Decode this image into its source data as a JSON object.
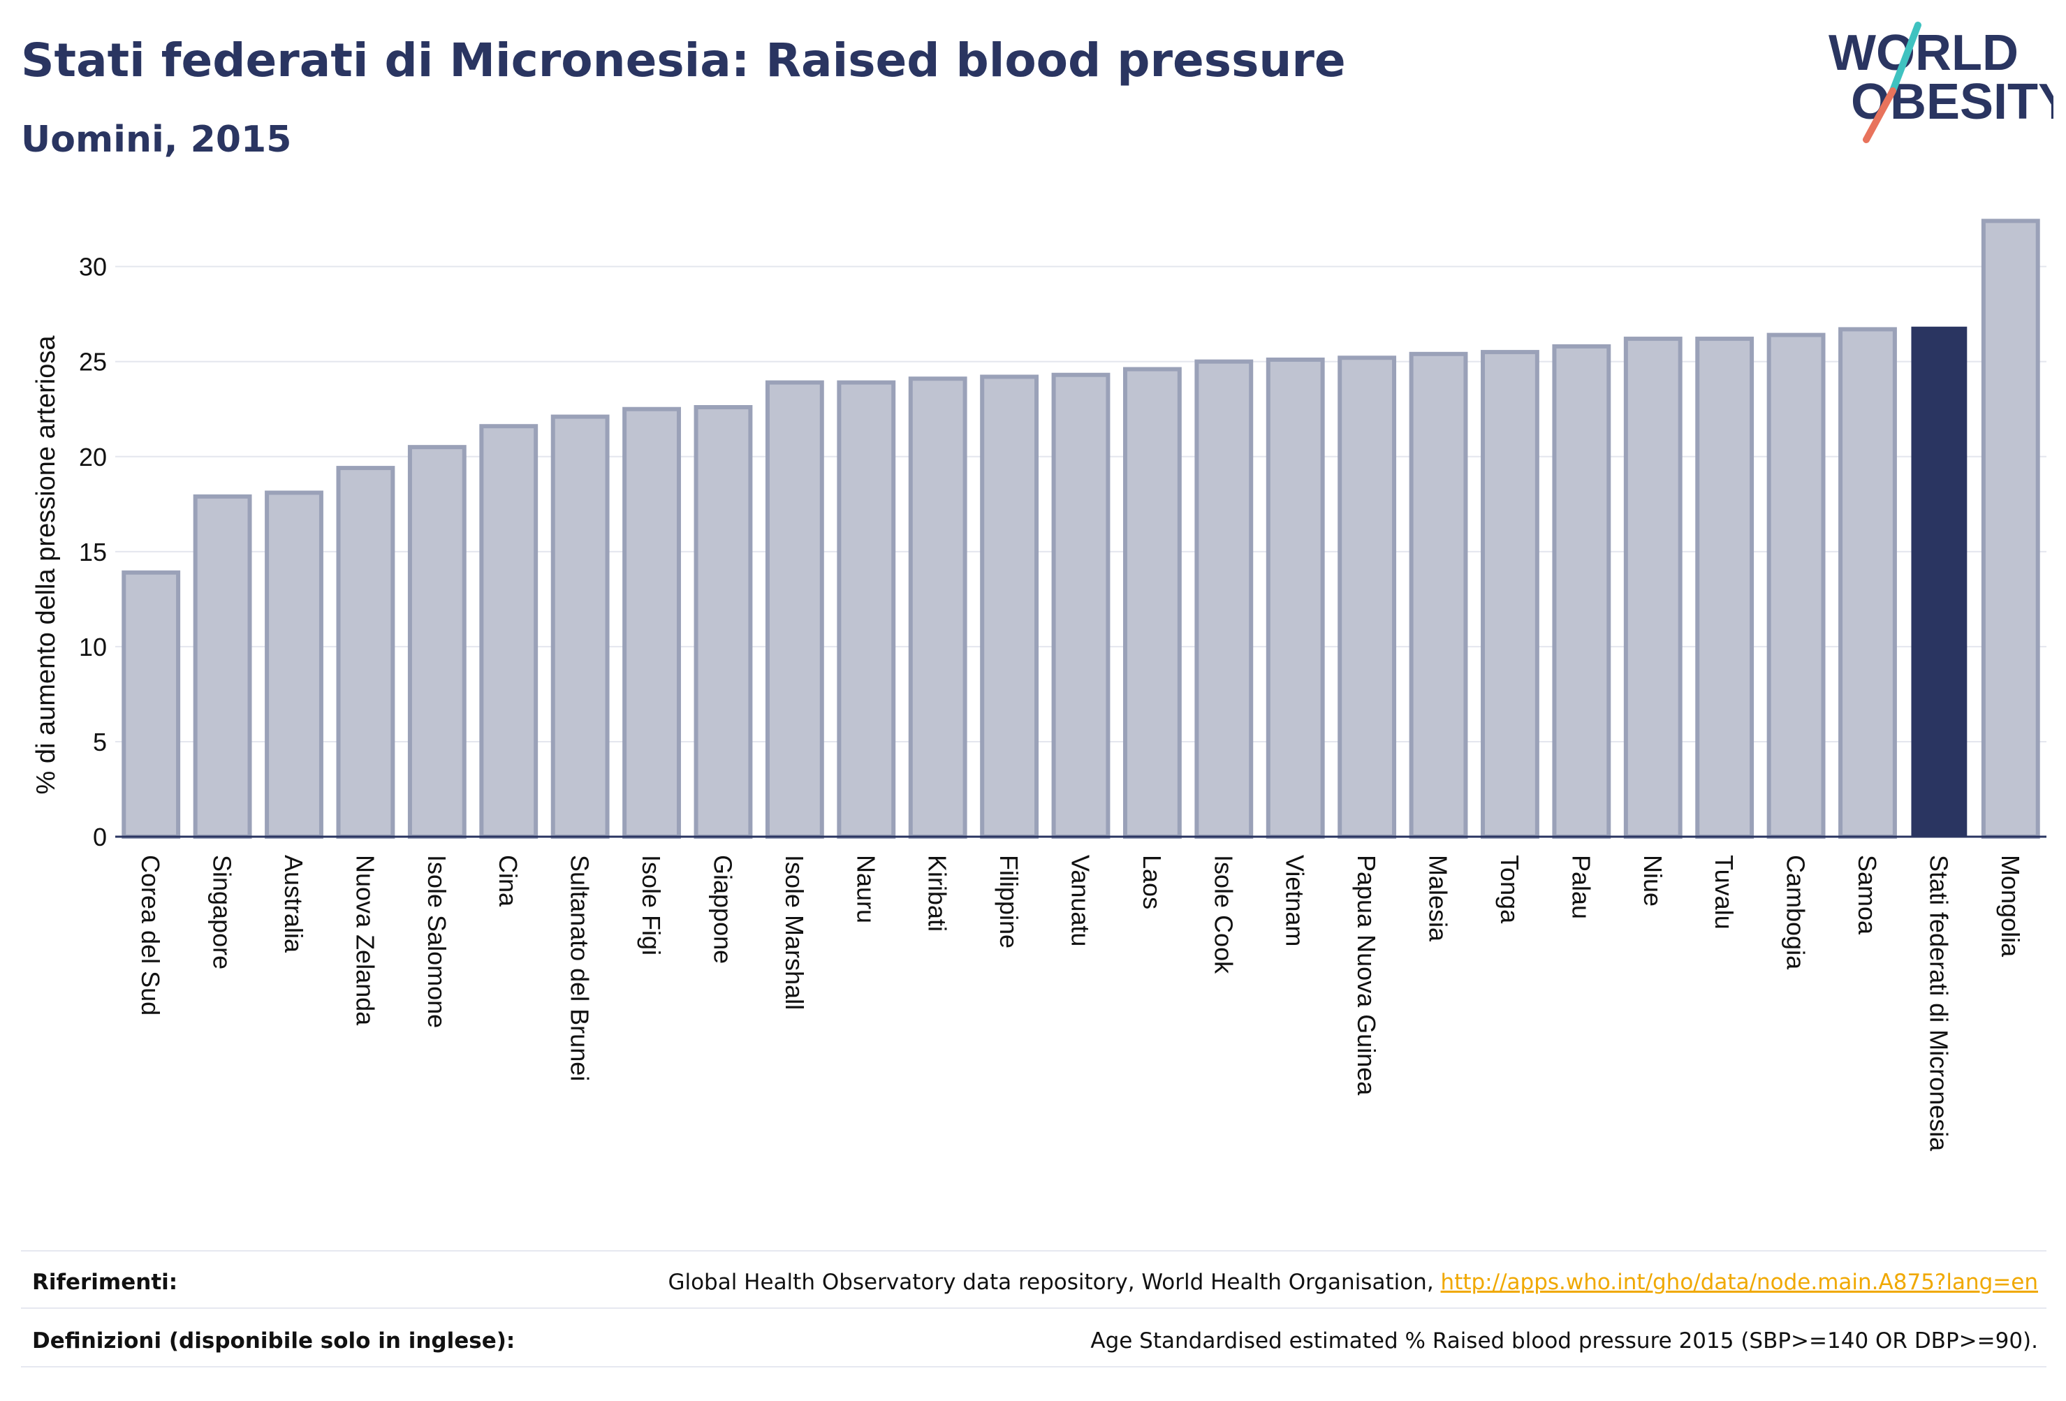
{
  "header": {
    "title": "Stati federati di Micronesia: Raised blood pressure",
    "subtitle": "Uomini, 2015"
  },
  "logo": {
    "line1": "WORLD",
    "line2": "OBESITY"
  },
  "colors": {
    "bar": "#bfc3d1",
    "bar_border": "#9aa1b8",
    "highlight": "#2a3561",
    "grid": "#e4e6ee",
    "text": "#2a3561",
    "logo_teal": "#3fc2c0",
    "logo_coral": "#e8735c"
  },
  "chart_data": {
    "type": "bar",
    "ylabel": "% di aumento della pressione arteriosa",
    "xlabel": "",
    "ylim": [
      0,
      33
    ],
    "yticks": [
      0,
      5,
      10,
      15,
      20,
      25,
      30
    ],
    "grid": true,
    "highlight": "Stati federati di Micronesia",
    "categories": [
      "Corea del Sud",
      "Singapore",
      "Australia",
      "Nuova Zelanda",
      "Isole Salomone",
      "Cina",
      "Sultanato del Brunei",
      "Isole Figi",
      "Giappone",
      "Isole Marshall",
      "Nauru",
      "Kiribati",
      "Filippine",
      "Vanuatu",
      "Laos",
      "Isole Cook",
      "Vietnam",
      "Papua Nuova Guinea",
      "Malesia",
      "Tonga",
      "Palau",
      "Niue",
      "Tuvalu",
      "Cambogia",
      "Samoa",
      "Stati federati di Micronesia",
      "Mongolia"
    ],
    "values": [
      13.9,
      17.9,
      18.1,
      19.4,
      20.5,
      21.6,
      22.1,
      22.5,
      22.6,
      23.9,
      23.9,
      24.1,
      24.2,
      24.3,
      24.6,
      25.0,
      25.1,
      25.2,
      25.4,
      25.5,
      25.8,
      26.2,
      26.2,
      26.4,
      26.7,
      26.8,
      32.4
    ]
  },
  "footer": {
    "references_label": "Riferimenti:",
    "references_text": "Global Health Observatory data repository, World Health Organisation,",
    "references_link": "http://apps.who.int/gho/data/node.main.A875?lang=en",
    "definitions_label": "Definizioni (disponibile solo in inglese):",
    "definitions_text": "Age Standardised estimated % Raised blood pressure 2015 (SBP>=140 OR DBP>=90)."
  }
}
